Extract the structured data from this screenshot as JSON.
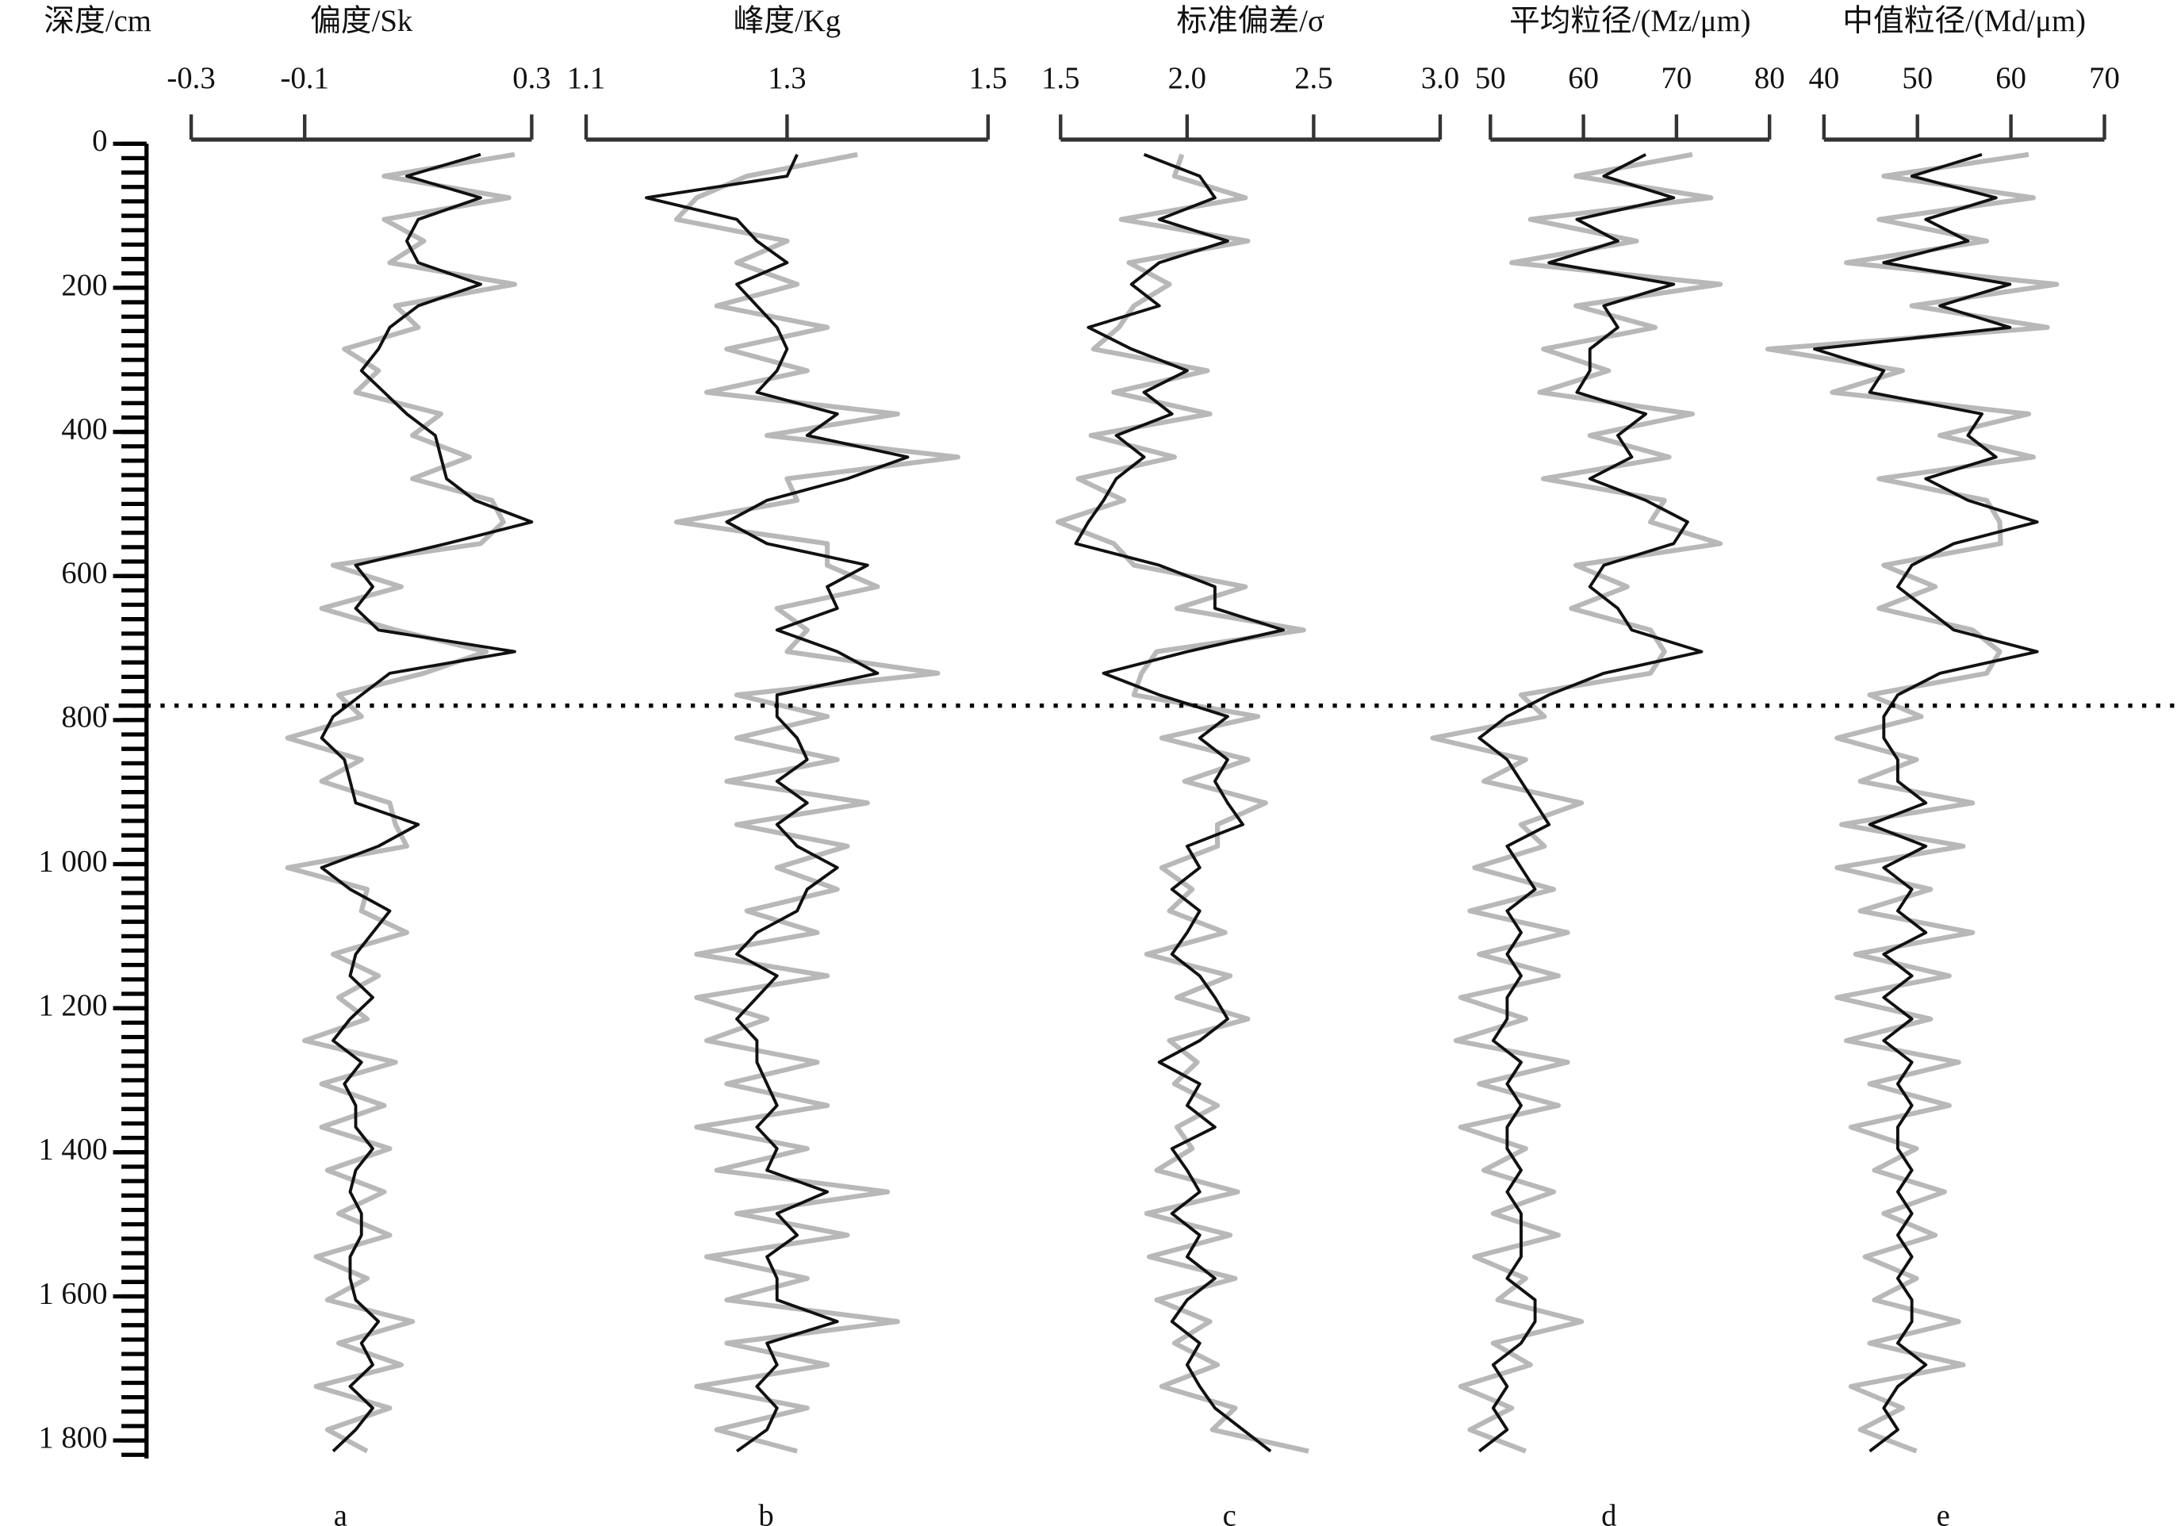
{
  "chart_data": {
    "type": "line",
    "ylabel": "深度/cm",
    "yinvert": true,
    "ylim": [
      0,
      1825
    ],
    "yticks": [
      0,
      200,
      400,
      600,
      800,
      {
        "value": 1000,
        "label": "1 000"
      },
      {
        "value": 1200,
        "label": "1 200"
      },
      {
        "value": 1400,
        "label": "1 400"
      },
      {
        "value": 1600,
        "label": "1 600"
      },
      {
        "value": 1800,
        "label": "1 800"
      }
    ],
    "yminor": 20,
    "reference_y": 780,
    "y": [
      15,
      45,
      75,
      105,
      135,
      165,
      195,
      225,
      255,
      285,
      315,
      345,
      375,
      405,
      435,
      465,
      495,
      525,
      555,
      585,
      615,
      645,
      675,
      705,
      735,
      765,
      795,
      825,
      855,
      885,
      915,
      945,
      975,
      1005,
      1035,
      1065,
      1095,
      1125,
      1155,
      1185,
      1215,
      1245,
      1275,
      1305,
      1335,
      1365,
      1395,
      1425,
      1455,
      1485,
      1515,
      1545,
      1575,
      1605,
      1635,
      1665,
      1695,
      1725,
      1755,
      1785,
      1815
    ],
    "panels": [
      {
        "title": "偏度/Sk",
        "label": "a",
        "xlim": [
          -0.3,
          0.3
        ],
        "xticks": [
          -0.3,
          -0.1,
          0.3
        ],
        "series": [
          {
            "color": "#b8b8b8",
            "values": [
              0.27,
              0.04,
              0.26,
              0.04,
              0.11,
              0.05,
              0.27,
              0.06,
              0.1,
              -0.03,
              0.03,
              -0.01,
              0.14,
              0.09,
              0.19,
              0.09,
              0.23,
              0.25,
              0.21,
              -0.05,
              0.07,
              -0.07,
              0.06,
              0.22,
              0.11,
              -0.04,
              0,
              -0.13,
              0,
              -0.07,
              0.05,
              0.06,
              0.08,
              -0.13,
              0.01,
              0,
              0.08,
              -0.05,
              0.03,
              -0.04,
              0.01,
              -0.1,
              0.06,
              -0.07,
              0.04,
              -0.07,
              0.05,
              -0.06,
              0.04,
              -0.04,
              0.05,
              -0.08,
              0.01,
              -0.06,
              0.09,
              -0.04,
              0.07,
              -0.08,
              0.05,
              -0.06,
              0.01
            ]
          },
          {
            "color": "#111111",
            "values": [
              0.21,
              0.08,
              0.21,
              0.1,
              0.08,
              0.1,
              0.21,
              0.1,
              0.05,
              0.03,
              0,
              0.04,
              0.08,
              0.13,
              0.14,
              0.15,
              0.2,
              0.3,
              0.15,
              -0.01,
              0.02,
              -0.01,
              0.03,
              0.27,
              0.05,
              0,
              -0.05,
              -0.07,
              -0.03,
              -0.02,
              -0.01,
              0.1,
              0.03,
              -0.07,
              -0.02,
              0.05,
              0.02,
              -0.01,
              -0.02,
              0.02,
              -0.02,
              -0.05,
              0,
              -0.03,
              -0.01,
              -0.01,
              0.02,
              -0.01,
              -0.02,
              0,
              0,
              -0.02,
              -0.02,
              -0.01,
              0.03,
              0,
              0.02,
              -0.02,
              0.02,
              -0.01,
              -0.05
            ]
          }
        ]
      },
      {
        "title": "峰度/Kg",
        "label": "b",
        "xlim": [
          1.1,
          1.5
        ],
        "xticks": [
          1.1,
          1.3,
          1.5
        ],
        "series": [
          {
            "color": "#b8b8b8",
            "values": [
              1.37,
              1.26,
              1.21,
              1.19,
              1.3,
              1.25,
              1.31,
              1.23,
              1.34,
              1.24,
              1.32,
              1.22,
              1.41,
              1.28,
              1.47,
              1.3,
              1.31,
              1.19,
              1.34,
              1.34,
              1.39,
              1.29,
              1.32,
              1.3,
              1.45,
              1.25,
              1.34,
              1.25,
              1.35,
              1.24,
              1.38,
              1.25,
              1.36,
              1.29,
              1.35,
              1.26,
              1.33,
              1.21,
              1.34,
              1.21,
              1.28,
              1.22,
              1.33,
              1.24,
              1.34,
              1.21,
              1.32,
              1.23,
              1.4,
              1.25,
              1.36,
              1.22,
              1.32,
              1.24,
              1.41,
              1.24,
              1.34,
              1.21,
              1.32,
              1.23,
              1.31
            ]
          },
          {
            "color": "#111111",
            "values": [
              1.31,
              1.3,
              1.16,
              1.25,
              1.27,
              1.3,
              1.25,
              1.27,
              1.29,
              1.3,
              1.29,
              1.27,
              1.35,
              1.32,
              1.42,
              1.36,
              1.28,
              1.24,
              1.28,
              1.38,
              1.34,
              1.35,
              1.29,
              1.35,
              1.39,
              1.29,
              1.29,
              1.31,
              1.32,
              1.29,
              1.32,
              1.29,
              1.31,
              1.35,
              1.32,
              1.31,
              1.27,
              1.25,
              1.29,
              1.27,
              1.25,
              1.27,
              1.27,
              1.28,
              1.29,
              1.27,
              1.29,
              1.28,
              1.34,
              1.29,
              1.31,
              1.28,
              1.29,
              1.29,
              1.35,
              1.28,
              1.29,
              1.27,
              1.29,
              1.28,
              1.25
            ]
          }
        ]
      },
      {
        "title": "标准偏差/σ",
        "label": "c",
        "xlim": [
          1.5,
          3
        ],
        "xticks": [
          1.5,
          {
            "value": 2,
            "label": "2.0"
          },
          2.5,
          {
            "value": 3,
            "label": "3.0"
          }
        ],
        "series": [
          {
            "color": "#b8b8b8",
            "values": [
              1.98,
              1.95,
              2.23,
              1.74,
              2.24,
              1.77,
              1.93,
              1.79,
              1.73,
              1.63,
              2.08,
              1.71,
              2.09,
              1.62,
              1.95,
              1.57,
              1.75,
              1.49,
              1.71,
              1.79,
              2.23,
              1.96,
              2.46,
              1.88,
              1.82,
              1.79,
              2.28,
              1.9,
              2.24,
              1.99,
              2.31,
              2.12,
              2.12,
              1.9,
              2.02,
              1.93,
              2.15,
              1.84,
              2.17,
              1.96,
              2.24,
              1.93,
              2.04,
              1.95,
              2.12,
              1.96,
              2.02,
              1.88,
              2.2,
              1.84,
              2.17,
              1.85,
              2.19,
              1.88,
              2.09,
              1.95,
              2.12,
              1.9,
              2.19,
              2.1,
              2.48
            ]
          },
          {
            "color": "#111111",
            "values": [
              1.83,
              2.05,
              2.11,
              1.89,
              2.16,
              1.89,
              1.78,
              1.89,
              1.61,
              1.78,
              2,
              1.83,
              1.94,
              1.72,
              1.83,
              1.72,
              1.67,
              1.61,
              1.56,
              1.89,
              2.11,
              2.11,
              2.38,
              2,
              1.67,
              1.89,
              2.16,
              2.05,
              2.16,
              2.11,
              2.16,
              2.22,
              2,
              2.05,
              1.94,
              2.05,
              2,
              1.94,
              2.05,
              2.11,
              2.16,
              2.05,
              1.89,
              2.05,
              2,
              2.11,
              1.94,
              2,
              2.05,
              1.94,
              2.05,
              2,
              2.11,
              2,
              1.94,
              2.05,
              2,
              2.05,
              2.11,
              2.22,
              2.33
            ]
          }
        ]
      },
      {
        "title": "平均粒径/(Mz/μm)",
        "label": "d",
        "xlim": [
          50,
          80
        ],
        "xticks": [
          50,
          60,
          70,
          80
        ],
        "series": [
          {
            "color": "#b8b8b8",
            "values": [
              71.7,
              59.2,
              73.7,
              54.3,
              65.7,
              52.3,
              74.7,
              59.2,
              67.7,
              55.7,
              62.7,
              55.3,
              71.7,
              60.7,
              69.2,
              55.7,
              68.7,
              67.2,
              74.7,
              59.2,
              64.7,
              58.7,
              67.2,
              68.7,
              67.2,
              53.3,
              55.8,
              43.8,
              53.8,
              49.3,
              59.8,
              53.3,
              55.8,
              48.3,
              56.8,
              47.8,
              58.3,
              48.8,
              57.3,
              46.8,
              53.8,
              46.3,
              58.3,
              48.8,
              57.3,
              46.8,
              53.8,
              49.3,
              56.8,
              50.3,
              57.3,
              48.3,
              53.8,
              50.8,
              59.8,
              50.3,
              54.3,
              46.8,
              52.3,
              47.8,
              53.8
            ]
          },
          {
            "color": "#111111",
            "values": [
              66.7,
              62.2,
              69.7,
              59.3,
              63.7,
              56.3,
              69.7,
              62.2,
              63.7,
              60.7,
              60.7,
              59.3,
              66.7,
              63.7,
              65.2,
              60.7,
              66.7,
              71.2,
              69.7,
              62.2,
              60.7,
              63.7,
              65.2,
              72.7,
              62.2,
              56.3,
              51.8,
              48.8,
              51.8,
              53.3,
              54.8,
              56.3,
              51.8,
              53.3,
              54.8,
              51.8,
              53.3,
              51.8,
              53.3,
              51.8,
              51.8,
              50.3,
              53.3,
              51.8,
              53.3,
              51.8,
              51.8,
              53.3,
              51.8,
              53.3,
              53.3,
              53.3,
              51.8,
              54.8,
              54.8,
              53.3,
              50.3,
              51.8,
              50.3,
              51.8,
              48.8
            ]
          }
        ]
      },
      {
        "title": "中值粒径/(Md/μm)",
        "label": "e",
        "xlim": [
          40,
          70
        ],
        "xticks": [
          40,
          50,
          60,
          70
        ],
        "series": [
          {
            "color": "#b8b8b8",
            "values": [
              61.9,
              46.4,
              62.4,
              45.9,
              57.4,
              42.4,
              64.9,
              49.4,
              63.9,
              34,
              48.4,
              40.9,
              61.9,
              52.4,
              62.4,
              45.9,
              57.4,
              58.8,
              58.9,
              46.4,
              51.9,
              45.9,
              55.9,
              58.8,
              57.4,
              44.9,
              50.4,
              41.4,
              49.9,
              43.9,
              55.9,
              41.9,
              54.9,
              41.4,
              51.4,
              43.9,
              55.9,
              43.4,
              53.4,
              41.4,
              51.4,
              42.4,
              54.4,
              44.9,
              53.4,
              42.9,
              49.9,
              45.4,
              52.9,
              46.4,
              51.9,
              44.4,
              49.9,
              45.4,
              54.4,
              44.9,
              54.9,
              42.9,
              48.4,
              43.9,
              49.9
            ]
          },
          {
            "color": "#111111",
            "values": [
              56.9,
              49.4,
              58.4,
              50.9,
              55.4,
              46.4,
              59.9,
              52.4,
              59.9,
              39,
              46.4,
              44.9,
              56.9,
              55.4,
              58.4,
              50.9,
              55.4,
              62.8,
              53.9,
              49.4,
              47.9,
              50.9,
              53.9,
              62.8,
              52.4,
              47.9,
              46.4,
              46.4,
              47.9,
              47.9,
              50.9,
              44.9,
              50.9,
              46.4,
              49.4,
              47.9,
              50.9,
              46.4,
              49.4,
              46.4,
              49.4,
              46.4,
              49.4,
              47.9,
              49.4,
              47.9,
              47.9,
              49.4,
              47.9,
              49.4,
              47.9,
              49.4,
              47.9,
              49.4,
              49.4,
              47.9,
              50.9,
              47.9,
              46.4,
              47.9,
              44.9
            ]
          }
        ]
      }
    ]
  }
}
